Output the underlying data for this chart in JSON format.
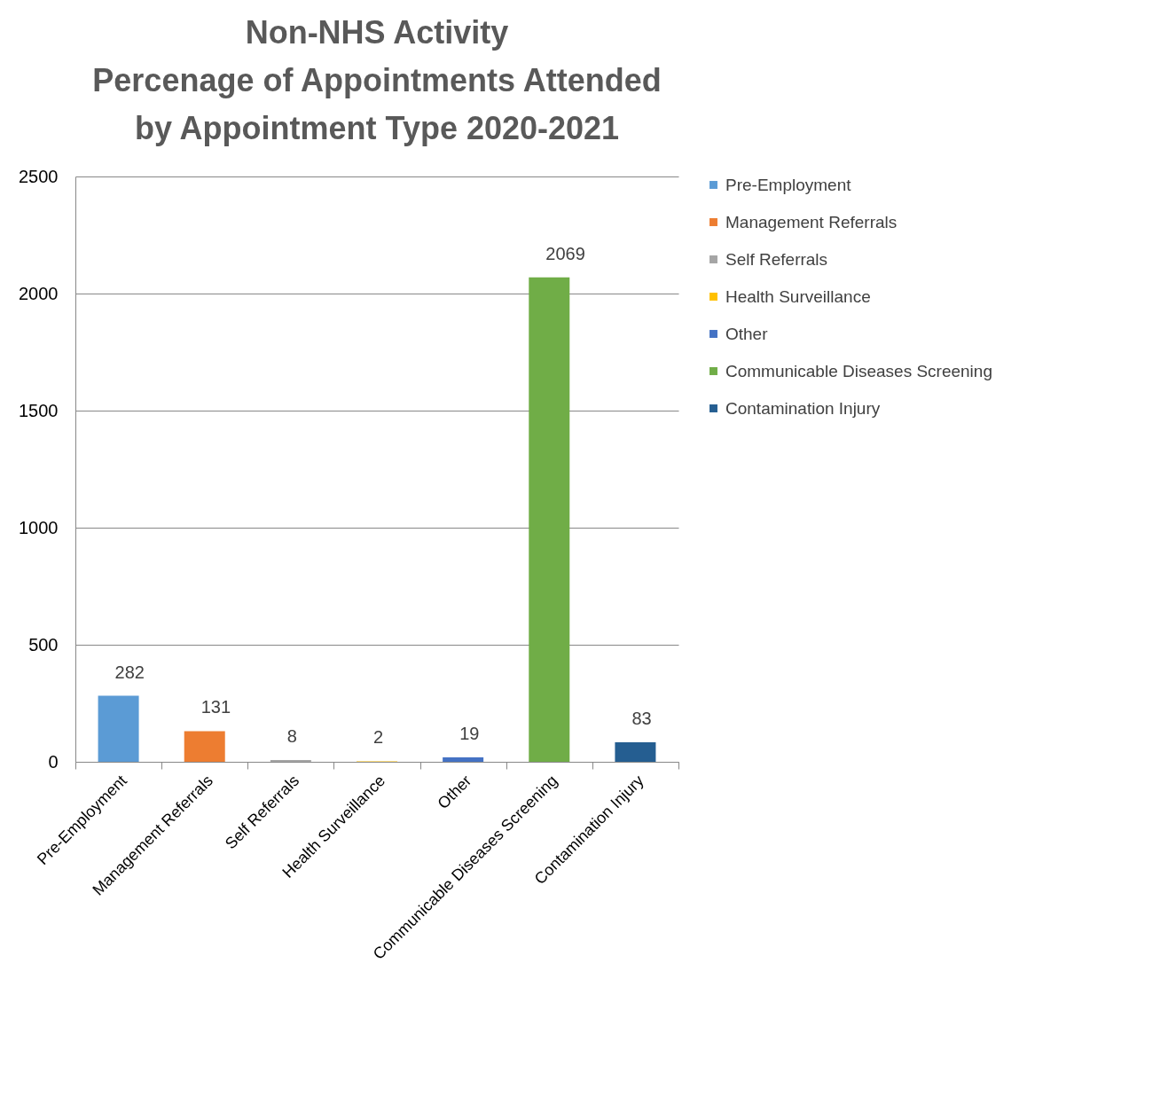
{
  "chart_data": {
    "type": "bar",
    "title": "Non-NHS Activity\nPercenage of Appointments Attended\nby Appointment Type 2020-2021",
    "categories": [
      "Pre-Employment",
      "Management Referrals",
      "Self Referrals",
      "Health Surveillance",
      "Other",
      "Communicable Diseases Screening",
      "Contamination Injury"
    ],
    "series": [
      {
        "name": "Pre-Employment",
        "color": "#5b9bd5",
        "values": [
          282,
          null,
          null,
          null,
          null,
          null,
          null
        ]
      },
      {
        "name": "Management Referrals",
        "color": "#ed7d31",
        "values": [
          null,
          131,
          null,
          null,
          null,
          null,
          null
        ]
      },
      {
        "name": "Self Referrals",
        "color": "#a5a5a5",
        "values": [
          null,
          null,
          8,
          null,
          null,
          null,
          null
        ]
      },
      {
        "name": "Health Surveillance",
        "color": "#ffc000",
        "values": [
          null,
          null,
          null,
          2,
          null,
          null,
          null
        ]
      },
      {
        "name": "Other",
        "color": "#4472c4",
        "values": [
          null,
          null,
          null,
          null,
          19,
          null,
          null
        ]
      },
      {
        "name": "Communicable Diseases Screening",
        "color": "#70ad47",
        "values": [
          null,
          null,
          null,
          null,
          null,
          2069,
          null
        ]
      },
      {
        "name": "Contamination Injury",
        "color": "#255e91",
        "values": [
          null,
          null,
          null,
          null,
          null,
          null,
          83
        ]
      }
    ],
    "ylim": [
      0,
      2500
    ],
    "yticks": [
      0,
      500,
      1000,
      1500,
      2000,
      2500
    ],
    "grid": "y",
    "legend": "right",
    "data_labels": true
  }
}
